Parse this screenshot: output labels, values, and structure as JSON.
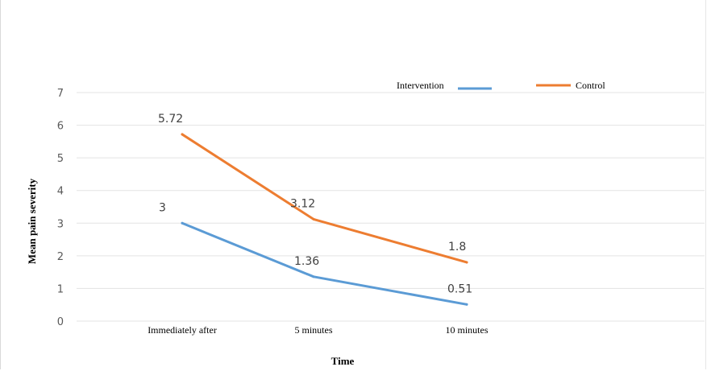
{
  "chart_data": {
    "type": "line",
    "title": "",
    "xlabel": "Time",
    "ylabel": "Mean pain severity",
    "categories": [
      "Immediately after",
      "5 minutes",
      "10 minutes"
    ],
    "ylim": [
      0,
      7
    ],
    "yticks": [
      "0",
      "1",
      "2",
      "3",
      "4",
      "5",
      "6",
      "7"
    ],
    "grid": true,
    "legend_position": "top-right",
    "series": [
      {
        "name": "Intervention",
        "color": "#5b9bd5",
        "values": [
          3,
          1.36,
          0.51
        ],
        "labels": [
          "3",
          "1.36",
          "0.51"
        ]
      },
      {
        "name": "Control",
        "color": "#ed7d31",
        "values": [
          5.72,
          3.12,
          1.8
        ],
        "labels": [
          "5.72",
          "3.12",
          "1.8"
        ]
      }
    ]
  }
}
